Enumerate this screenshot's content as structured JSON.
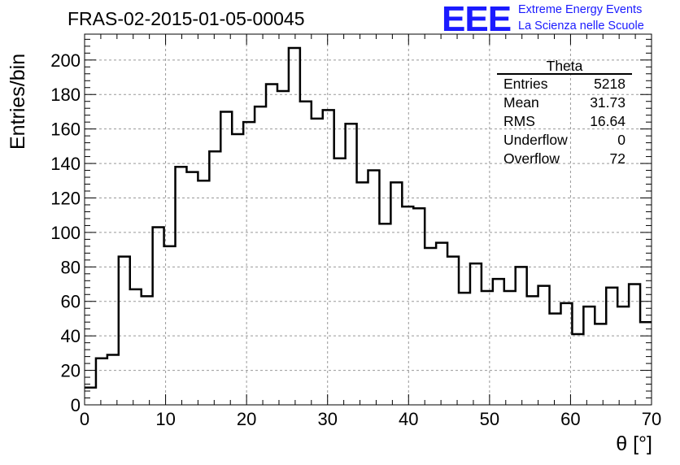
{
  "header": {
    "title": "FRAS-02-2015-01-05-00045",
    "logo_text": "EEE",
    "logo_line1": "Extreme Energy Events",
    "logo_line2": "La Scienza nelle Scuole"
  },
  "stats": {
    "name": "Theta",
    "rows": [
      {
        "label": "Entries",
        "value": "5218"
      },
      {
        "label": "Mean",
        "value": "31.73"
      },
      {
        "label": "RMS",
        "value": "16.64"
      },
      {
        "label": "Underflow",
        "value": "0"
      },
      {
        "label": "Overflow",
        "value": "72"
      }
    ]
  },
  "colors": {
    "line": "#000000",
    "grid": "#999999",
    "logo": "#1a1aff"
  },
  "chart_data": {
    "type": "histogram",
    "title": "FRAS-02-2015-01-05-00045",
    "xlabel": "θ [°]",
    "ylabel": "Entries/bin",
    "xlim": [
      0,
      70
    ],
    "ylim": [
      0,
      215
    ],
    "bin_width": 1.4,
    "x_ticks": [
      0,
      10,
      20,
      30,
      40,
      50,
      60,
      70
    ],
    "y_ticks": [
      0,
      20,
      40,
      60,
      80,
      100,
      120,
      140,
      160,
      180,
      200
    ],
    "grid": true,
    "values": [
      10,
      27,
      29,
      86,
      67,
      63,
      103,
      92,
      138,
      135,
      130,
      147,
      170,
      157,
      164,
      173,
      186,
      182,
      207,
      176,
      166,
      171,
      143,
      163,
      129,
      136,
      105,
      129,
      115,
      114,
      91,
      94,
      86,
      65,
      82,
      66,
      73,
      66,
      80,
      63,
      69,
      53,
      59,
      41,
      57,
      47,
      68,
      57,
      70,
      48
    ]
  }
}
